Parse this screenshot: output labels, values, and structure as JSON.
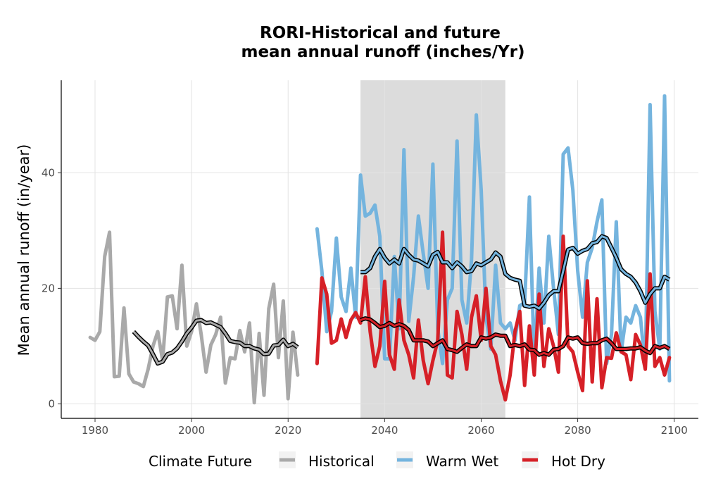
{
  "chart_data": {
    "type": "line",
    "title": "RORI-Historical and future",
    "subtitle": "mean annual runoff (inches/Yr)",
    "xlabel": "",
    "ylabel": "Mean annual runoff (in/year)",
    "xlim": [
      1973,
      2105
    ],
    "ylim": [
      -2.5,
      56
    ],
    "x_ticks": [
      1980,
      2000,
      2020,
      2040,
      2060,
      2080,
      2100
    ],
    "y_ticks": [
      0,
      20,
      40
    ],
    "grid": true,
    "legend_title": "Climate Future",
    "legend_position": "bottom",
    "shaded_period": [
      2035,
      2065
    ],
    "series": [
      {
        "name": "Historical",
        "color": "#a9a9a9",
        "x": [
          1979,
          1980,
          1981,
          1982,
          1983,
          1984,
          1985,
          1986,
          1987,
          1988,
          1989,
          1990,
          1991,
          1992,
          1993,
          1994,
          1995,
          1996,
          1997,
          1998,
          1999,
          2000,
          2001,
          2002,
          2003,
          2004,
          2005,
          2006,
          2007,
          2008,
          2009,
          2010,
          2011,
          2012,
          2013,
          2014,
          2015,
          2016,
          2017,
          2018,
          2019,
          2020,
          2021,
          2022
        ],
        "values": [
          11.5,
          11,
          12.5,
          25.5,
          29.7,
          4.7,
          4.8,
          16.6,
          5.2,
          3.8,
          3.5,
          3,
          6,
          10,
          12.5,
          7.5,
          18.5,
          18.7,
          13,
          24,
          10,
          12.5,
          17.3,
          12,
          5.5,
          10.2,
          12,
          15,
          3.6,
          8,
          7.8,
          12.7,
          9,
          14,
          0.2,
          12.2,
          1.5,
          16.5,
          20.7,
          8,
          17.8,
          0.9,
          12.4,
          5
        ]
      },
      {
        "name": "Historical moving average",
        "color": "#000000",
        "x": [
          1988,
          1989,
          1990,
          1991,
          1992,
          1993,
          1994,
          1995,
          1996,
          1997,
          1998,
          1999,
          2000,
          2001,
          2002,
          2003,
          2004,
          2005,
          2006,
          2007,
          2008,
          2009,
          2010,
          2011,
          2012,
          2013,
          2014,
          2015,
          2016,
          2017,
          2018,
          2019,
          2020,
          2021,
          2022
        ],
        "values": [
          12.5,
          11.6,
          10.8,
          10.1,
          8.6,
          7,
          7.3,
          8.6,
          8.9,
          9.6,
          10.8,
          12.2,
          13.2,
          14.4,
          14.5,
          14,
          14.1,
          13.7,
          13.3,
          12.2,
          10.9,
          10.7,
          10.6,
          10,
          10,
          9.6,
          9.4,
          8.6,
          8.7,
          10.1,
          10.2,
          11.1,
          10,
          10.4,
          9.8
        ]
      },
      {
        "name": "Warm Wet",
        "color": "#74b4de",
        "x": [
          2026,
          2027,
          2028,
          2029,
          2030,
          2031,
          2032,
          2033,
          2034,
          2035,
          2036,
          2037,
          2038,
          2039,
          2040,
          2041,
          2042,
          2043,
          2044,
          2045,
          2046,
          2047,
          2048,
          2049,
          2050,
          2051,
          2052,
          2053,
          2054,
          2055,
          2056,
          2057,
          2058,
          2059,
          2060,
          2061,
          2062,
          2063,
          2064,
          2065,
          2066,
          2067,
          2068,
          2069,
          2070,
          2071,
          2072,
          2073,
          2074,
          2075,
          2076,
          2077,
          2078,
          2079,
          2080,
          2081,
          2082,
          2083,
          2084,
          2085,
          2086,
          2087,
          2088,
          2089,
          2090,
          2091,
          2092,
          2093,
          2094,
          2095,
          2096,
          2097,
          2098,
          2099
        ],
        "values": [
          30.3,
          23,
          12.5,
          16,
          28.7,
          18.5,
          16,
          23.5,
          15,
          39.6,
          32.5,
          33,
          34.4,
          29,
          7.8,
          7.8,
          25.5,
          13,
          44,
          14.3,
          22,
          32.5,
          26,
          20,
          41.5,
          13,
          7,
          18,
          20,
          45.5,
          18,
          14,
          25,
          50,
          37,
          15,
          9.5,
          24,
          14,
          13,
          14,
          11,
          17,
          17.5,
          35.8,
          7,
          23.5,
          14,
          29,
          20,
          12,
          43.2,
          44.3,
          37,
          23,
          15,
          24.5,
          27,
          31.5,
          35.3,
          7,
          12,
          31.5,
          9,
          15,
          14,
          17,
          15,
          6.3,
          51.8,
          16,
          9.5,
          53.3,
          4
        ]
      },
      {
        "name": "Warm Wet moving average",
        "color": "#000000",
        "x": [
          2035,
          2036,
          2037,
          2038,
          2039,
          2040,
          2041,
          2042,
          2043,
          2044,
          2045,
          2046,
          2047,
          2048,
          2049,
          2050,
          2051,
          2052,
          2053,
          2054,
          2055,
          2056,
          2057,
          2058,
          2059,
          2060,
          2061,
          2062,
          2063,
          2064,
          2065,
          2066,
          2067,
          2068,
          2069,
          2070,
          2071,
          2072,
          2073,
          2074,
          2075,
          2076,
          2077,
          2078,
          2079,
          2080,
          2081,
          2082,
          2083,
          2084,
          2085,
          2086,
          2087,
          2088,
          2089,
          2090,
          2091,
          2092,
          2093,
          2094,
          2095,
          2096,
          2097,
          2098,
          2099
        ],
        "values": [
          22.8,
          22.8,
          23.5,
          25.5,
          26.8,
          25.3,
          24.3,
          25,
          24.3,
          26.8,
          25.8,
          25,
          24.8,
          24.3,
          23.8,
          25.8,
          26.3,
          24.5,
          24.5,
          23.5,
          24.5,
          23.8,
          22.8,
          23,
          24.3,
          24,
          24.5,
          25,
          26.2,
          25.5,
          22.5,
          21.8,
          21.5,
          21.3,
          17,
          16.8,
          17,
          16.5,
          17.5,
          18.8,
          19.5,
          19.5,
          23,
          26.7,
          27,
          26,
          26.5,
          26.8,
          27.8,
          28,
          29,
          28.7,
          27,
          25.3,
          23.3,
          22.5,
          22,
          21,
          19.5,
          17.5,
          19,
          20,
          20,
          22,
          21.5
        ]
      },
      {
        "name": "Hot Dry",
        "color": "#d62027",
        "x": [
          2026,
          2027,
          2028,
          2029,
          2030,
          2031,
          2032,
          2033,
          2034,
          2035,
          2036,
          2037,
          2038,
          2039,
          2040,
          2041,
          2042,
          2043,
          2044,
          2045,
          2046,
          2047,
          2048,
          2049,
          2050,
          2051,
          2052,
          2053,
          2054,
          2055,
          2056,
          2057,
          2058,
          2059,
          2060,
          2061,
          2062,
          2063,
          2064,
          2065,
          2066,
          2067,
          2068,
          2069,
          2070,
          2071,
          2072,
          2073,
          2074,
          2075,
          2076,
          2077,
          2078,
          2079,
          2080,
          2081,
          2082,
          2083,
          2084,
          2085,
          2086,
          2087,
          2088,
          2089,
          2090,
          2091,
          2092,
          2093,
          2094,
          2095,
          2096,
          2097,
          2098,
          2099
        ],
        "values": [
          7,
          21.8,
          19,
          10.5,
          11,
          14.7,
          11.5,
          14.5,
          15.8,
          14,
          22,
          12.5,
          6.5,
          10,
          21.2,
          8.5,
          6,
          18,
          11,
          8.5,
          4.5,
          14.5,
          7.5,
          3.5,
          7.5,
          11,
          29.7,
          5,
          4.5,
          16,
          12,
          6,
          15,
          18.7,
          11,
          20,
          10,
          8.5,
          4,
          0.7,
          5,
          12.5,
          16,
          3.2,
          13.5,
          5,
          19,
          6.5,
          13,
          10,
          5.5,
          29,
          10,
          9,
          5.5,
          2.3,
          21.3,
          3.8,
          18.2,
          2.8,
          8,
          7.9,
          12.3,
          9,
          8.5,
          4.2,
          12,
          10.2,
          6,
          22.5,
          6.5,
          8,
          5,
          8
        ]
      },
      {
        "name": "Hot Dry moving average",
        "color": "#000000",
        "x": [
          2035,
          2036,
          2037,
          2038,
          2039,
          2040,
          2041,
          2042,
          2043,
          2044,
          2045,
          2046,
          2047,
          2048,
          2049,
          2050,
          2051,
          2052,
          2053,
          2054,
          2055,
          2056,
          2057,
          2058,
          2059,
          2060,
          2061,
          2062,
          2063,
          2064,
          2065,
          2066,
          2067,
          2068,
          2069,
          2070,
          2071,
          2072,
          2073,
          2074,
          2075,
          2076,
          2077,
          2078,
          2079,
          2080,
          2081,
          2082,
          2083,
          2084,
          2085,
          2086,
          2087,
          2088,
          2089,
          2090,
          2091,
          2092,
          2093,
          2094,
          2095,
          2096,
          2097,
          2098,
          2099
        ],
        "values": [
          14.5,
          14.8,
          14.6,
          14,
          13.3,
          13.5,
          14,
          13.5,
          13.8,
          13.5,
          12.8,
          11,
          11,
          11,
          10.8,
          10,
          10.5,
          11,
          9.5,
          9.3,
          9,
          9.7,
          10.3,
          10,
          10,
          11.5,
          11.3,
          11.5,
          12,
          11.8,
          11.8,
          10,
          10.2,
          10,
          10.3,
          9.4,
          9.3,
          8.5,
          8.8,
          8.5,
          9.4,
          9.5,
          10,
          11.5,
          11.3,
          11.5,
          10.5,
          10.4,
          10.5,
          10.5,
          11,
          11.3,
          10.5,
          9.5,
          9.5,
          9.5,
          9.6,
          9.6,
          9.8,
          9.2,
          8.8,
          10,
          9.7,
          10,
          9.5
        ]
      }
    ]
  }
}
